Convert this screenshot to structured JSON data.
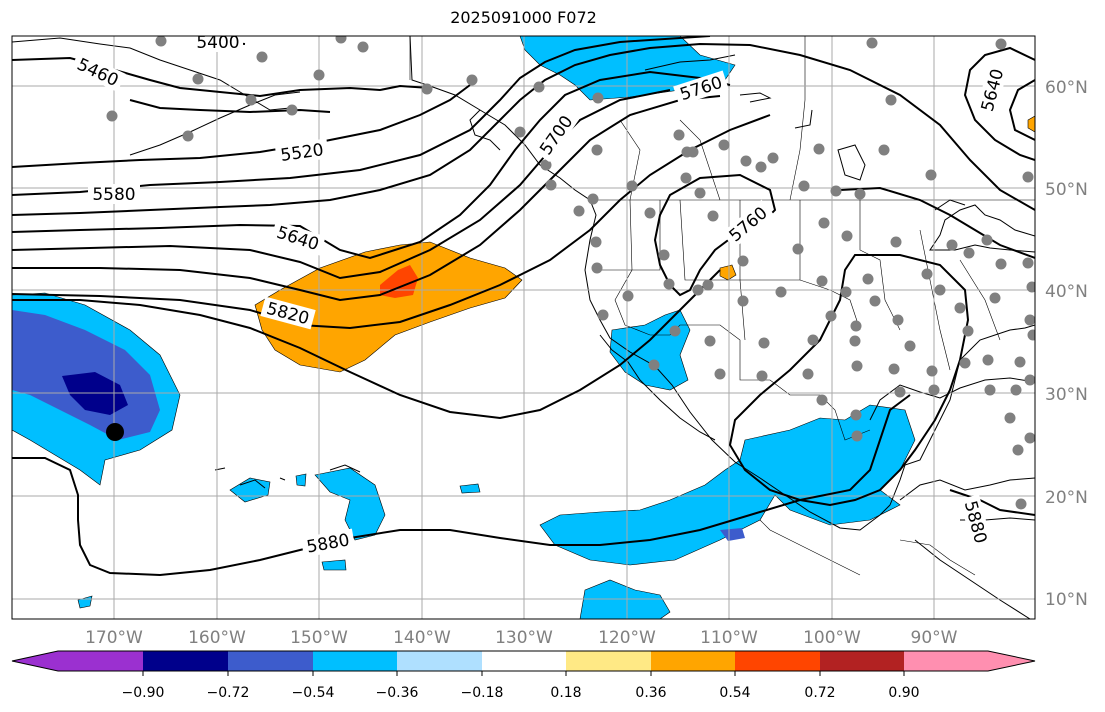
{
  "title": "2025091000 F072",
  "map": {
    "lat_labels": [
      "60°N",
      "50°N",
      "40°N",
      "30°N",
      "20°N",
      "10°N"
    ],
    "lon_labels": [
      "170°W",
      "160°W",
      "150°W",
      "140°W",
      "130°W",
      "120°W",
      "110°W",
      "100°W",
      "90°W"
    ],
    "contour_labels": [
      "5400",
      "5460",
      "5520",
      "5580",
      "5640",
      "5700",
      "5760",
      "5760",
      "5820",
      "5880",
      "5640",
      "5880"
    ],
    "grid_color": "#aaaaaa",
    "contour_color": "#000000",
    "station_dot_color": "#808080",
    "marker_color": "#000000"
  },
  "colorbar": {
    "ticks": [
      "−0.90",
      "−0.72",
      "−0.54",
      "−0.36",
      "−0.18",
      "0.18",
      "0.36",
      "0.54",
      "0.72",
      "0.90"
    ],
    "colors": [
      "#9b30d0",
      "#00008b",
      "#3d5ccc",
      "#00bfff",
      "#afe0ff",
      "#ffffff",
      "#ffe985",
      "#ffa500",
      "#ff4500",
      "#b22222",
      "#ff8fb0"
    ]
  }
}
